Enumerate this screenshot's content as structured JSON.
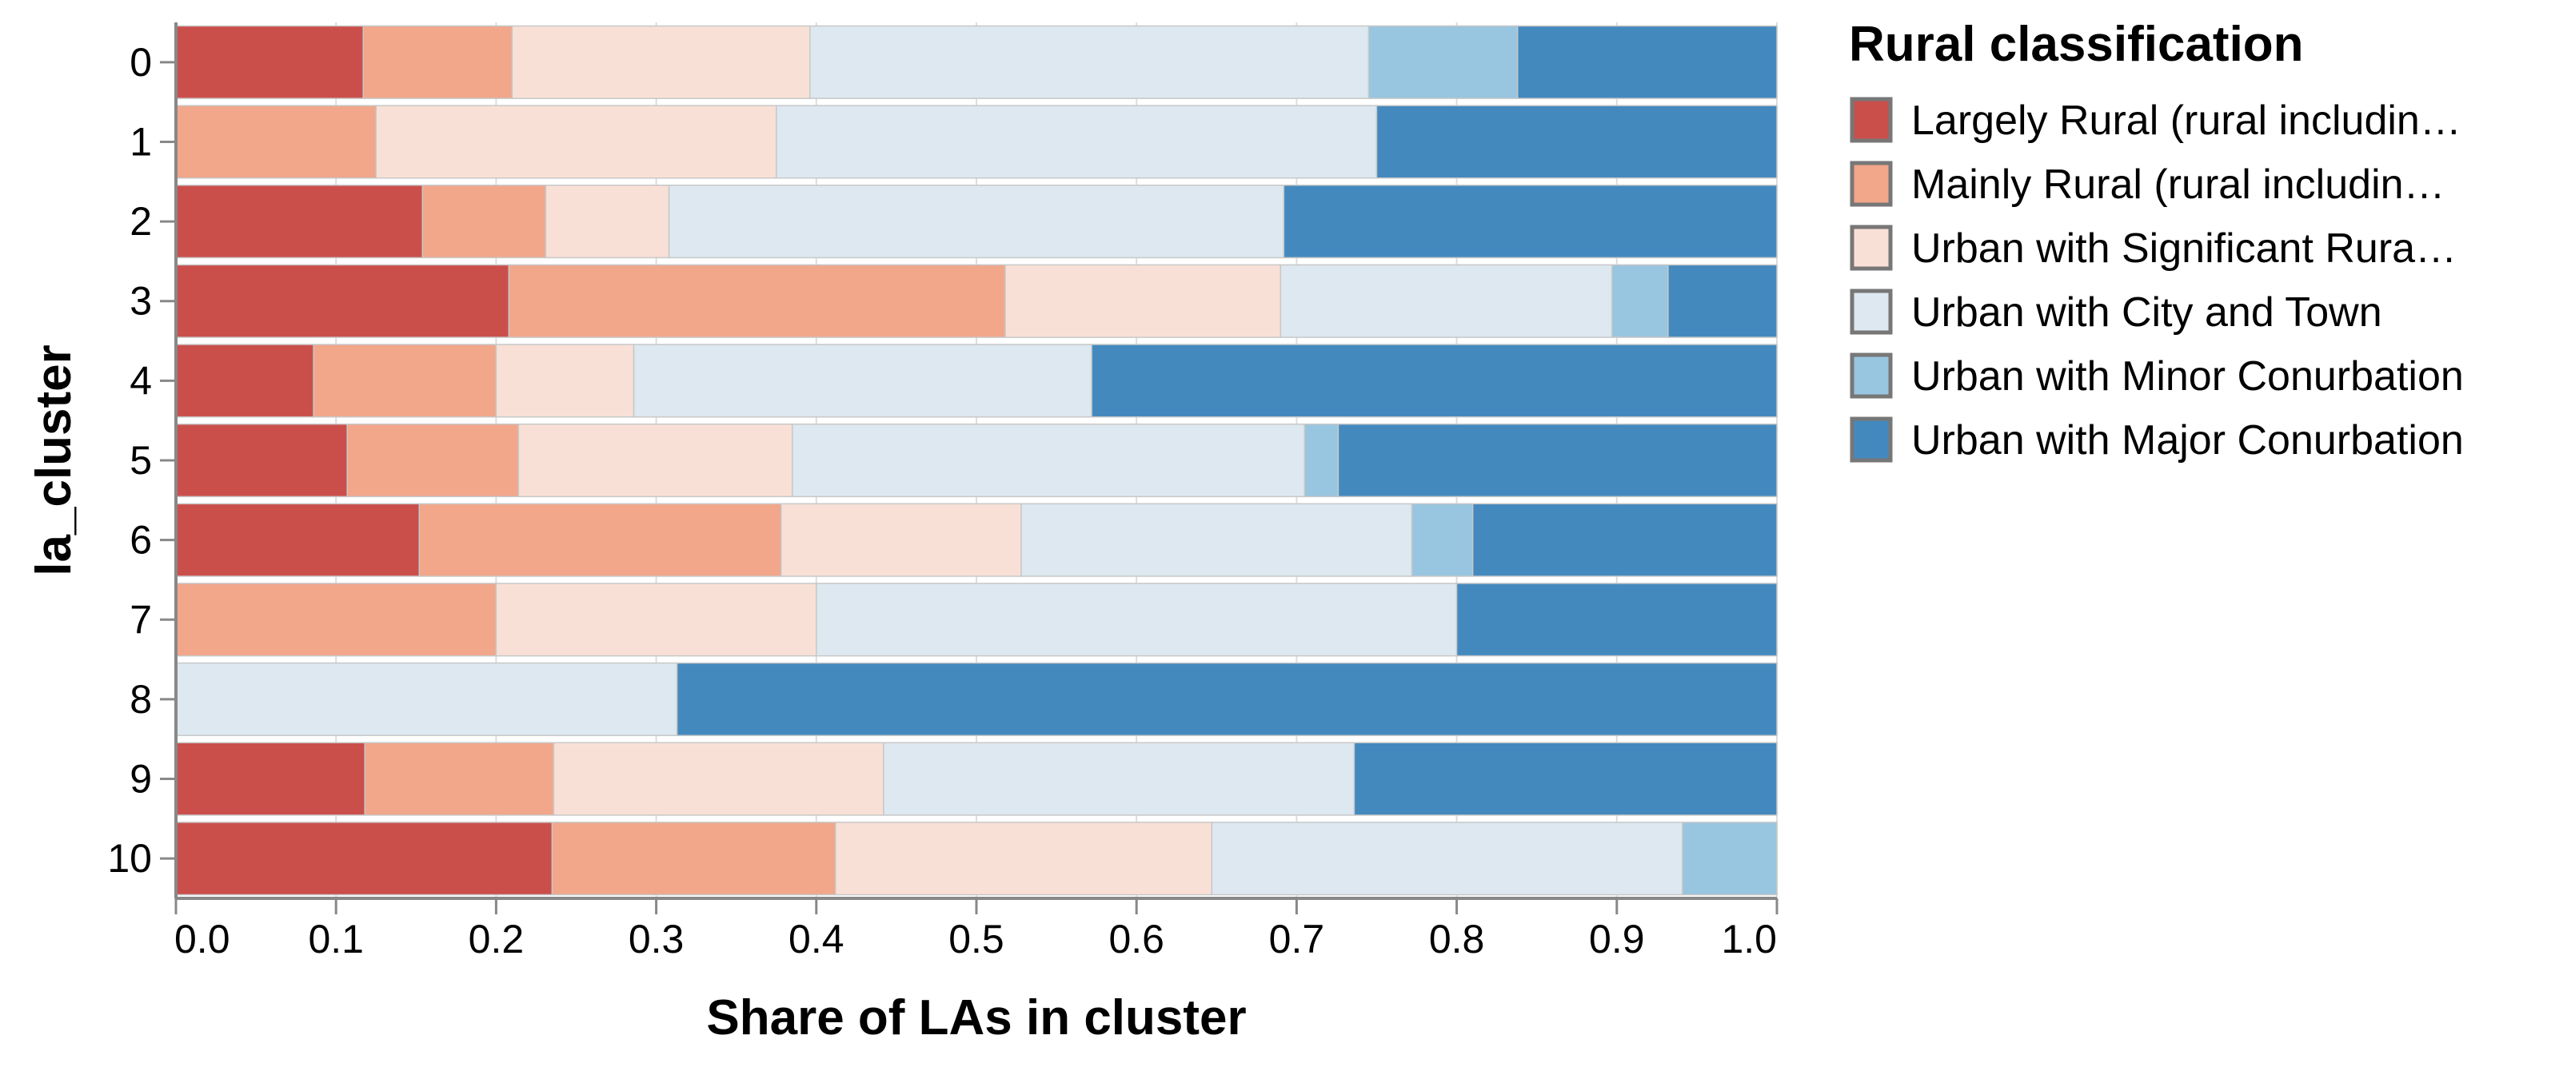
{
  "chart_data": {
    "type": "bar",
    "orientation": "horizontal",
    "stacked": "normalize",
    "xlabel": "Share of LAs in cluster",
    "ylabel": "la_cluster",
    "xlim": [
      0,
      1
    ],
    "x_ticks": [
      "0.0",
      "0.1",
      "0.2",
      "0.3",
      "0.4",
      "0.5",
      "0.6",
      "0.7",
      "0.8",
      "0.9",
      "1.0"
    ],
    "grid": true,
    "legend_title": "Rural classification",
    "legend_position": "right",
    "categories": [
      "0",
      "1",
      "2",
      "3",
      "4",
      "5",
      "6",
      "7",
      "8",
      "9",
      "10"
    ],
    "series": [
      {
        "name": "Largely Rural (rural includin…",
        "color": "#ca4f4b",
        "values": [
          0.117,
          0,
          0.154,
          0.208,
          0.086,
          0.107,
          0.152,
          0,
          0,
          0.118,
          0.235
        ]
      },
      {
        "name": "Mainly Rural (rural includin…",
        "color": "#f2a68a",
        "values": [
          0.093,
          0.125,
          0.077,
          0.31,
          0.114,
          0.107,
          0.226,
          0.2,
          0,
          0.118,
          0.177
        ]
      },
      {
        "name": "Urban with Significant Rura…",
        "color": "#f9e0d6",
        "values": [
          0.186,
          0.25,
          0.077,
          0.172,
          0.086,
          0.171,
          0.15,
          0.2,
          0,
          0.206,
          0.235
        ]
      },
      {
        "name": "Urban with City and Town",
        "color": "#dde8f0",
        "values": [
          0.349,
          0.375,
          0.384,
          0.207,
          0.286,
          0.32,
          0.244,
          0.4,
          0.313,
          0.294,
          0.294
        ]
      },
      {
        "name": "Urban with Minor Conurbation",
        "color": "#98c5df",
        "values": [
          0.093,
          0,
          0,
          0.035,
          0,
          0.021,
          0.038,
          0,
          0,
          0,
          0.059
        ]
      },
      {
        "name": "Urban with Major Conurbation",
        "color": "#4389be",
        "values": [
          0.162,
          0.25,
          0.308,
          0.068,
          0.428,
          0.274,
          0.19,
          0.2,
          0.687,
          0.264,
          0
        ]
      }
    ]
  }
}
